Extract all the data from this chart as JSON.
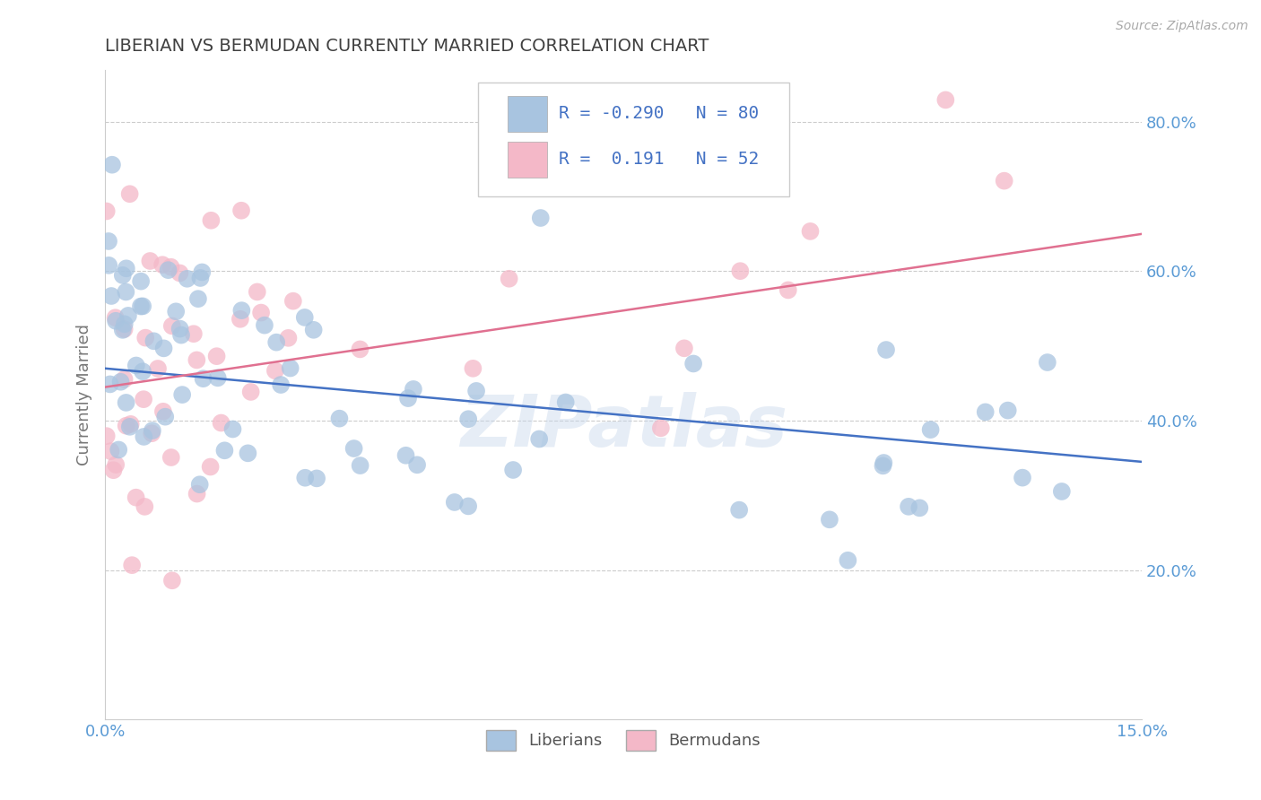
{
  "title": "LIBERIAN VS BERMUDAN CURRENTLY MARRIED CORRELATION CHART",
  "source_text": "Source: ZipAtlas.com",
  "ylabel": "Currently Married",
  "xlim": [
    0.0,
    15.0
  ],
  "ylim": [
    0.0,
    87.0
  ],
  "x_tick_labels": [
    "0.0%",
    "15.0%"
  ],
  "y_tick_vals": [
    20.0,
    40.0,
    60.0,
    80.0
  ],
  "y_tick_labels": [
    "20.0%",
    "40.0%",
    "60.0%",
    "80.0%"
  ],
  "watermark": "ZIPatlas",
  "blue_color": "#a8c4e0",
  "pink_color": "#f4b8c8",
  "blue_line_color": "#4472c4",
  "pink_line_color": "#e07090",
  "title_color": "#404040",
  "grid_color": "#cccccc",
  "blue_R": -0.29,
  "pink_R": 0.191,
  "blue_N": 80,
  "pink_N": 52,
  "blue_line_x0": 0.0,
  "blue_line_y0": 47.0,
  "blue_line_x1": 15.0,
  "blue_line_y1": 34.5,
  "pink_line_x0": 0.0,
  "pink_line_y0": 44.5,
  "pink_line_x1": 15.0,
  "pink_line_y1": 65.0,
  "seed": 42
}
